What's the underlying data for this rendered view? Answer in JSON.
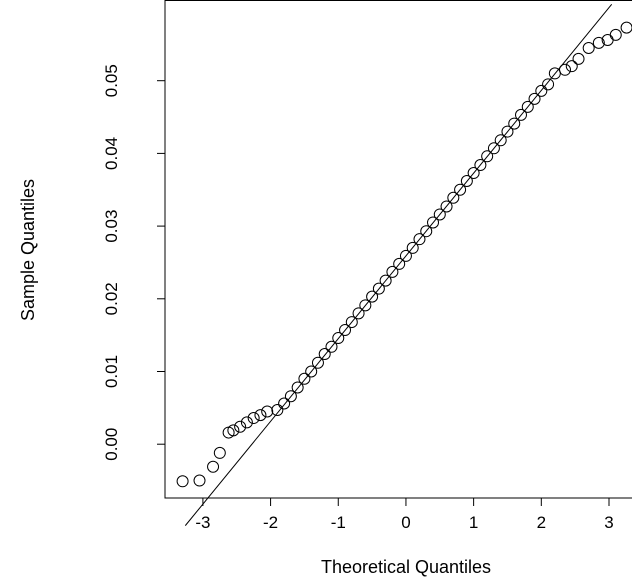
{
  "chart_data": {
    "type": "scatter",
    "x_label": "Theoretical Quantiles",
    "y_label": "Sample Quantiles",
    "xlim": [
      -3.56,
      3.34
    ],
    "ylim": [
      -0.0074,
      0.0611
    ],
    "xticks": [
      -3,
      -2,
      -1,
      0,
      1,
      2,
      3
    ],
    "yticks": [
      {
        "value": 0,
        "label": "0.00"
      },
      {
        "value": 0.01,
        "label": "0.01"
      },
      {
        "value": 0.02,
        "label": "0.02"
      },
      {
        "value": 0.03,
        "label": "0.03"
      },
      {
        "value": 0.04,
        "label": "0.04"
      },
      {
        "value": 0.05,
        "label": "0.05"
      }
    ],
    "color": "#000000",
    "x": [
      -3.3,
      -3.05,
      -2.85,
      -2.75,
      -2.62,
      -2.55,
      -2.45,
      -2.35,
      -2.25,
      -2.15,
      -2.05,
      -1.9,
      -1.8,
      -1.7,
      -1.6,
      -1.5,
      -1.4,
      -1.3,
      -1.2,
      -1.1,
      -1.0,
      -0.9,
      -0.8,
      -0.7,
      -0.6,
      -0.5,
      -0.4,
      -0.3,
      -0.2,
      -0.1,
      0,
      0.1,
      0.2,
      0.3,
      0.4,
      0.5,
      0.6,
      0.7,
      0.8,
      0.9,
      1.0,
      1.1,
      1.2,
      1.3,
      1.4,
      1.5,
      1.6,
      1.7,
      1.8,
      1.9,
      2.0,
      2.1,
      2.2,
      2.35,
      2.45,
      2.55,
      2.7,
      2.85,
      2.98,
      3.1,
      3.26
    ],
    "values": [
      -0.0051,
      -0.005,
      -0.0031,
      -0.0012,
      0.0016,
      0.0019,
      0.0024,
      0.003,
      0.0036,
      0.004,
      0.0045,
      0.0047,
      0.0056,
      0.0066,
      0.0078,
      0.009,
      0.01,
      0.0112,
      0.0124,
      0.0134,
      0.0146,
      0.0157,
      0.0168,
      0.018,
      0.0191,
      0.0203,
      0.0214,
      0.0225,
      0.0237,
      0.0248,
      0.0259,
      0.027,
      0.0282,
      0.0293,
      0.0305,
      0.0316,
      0.0327,
      0.0339,
      0.035,
      0.0362,
      0.0373,
      0.0384,
      0.0396,
      0.0407,
      0.0418,
      0.043,
      0.0441,
      0.0453,
      0.0464,
      0.0475,
      0.0486,
      0.0495,
      0.051,
      0.0515,
      0.052,
      0.053,
      0.0545,
      0.0552,
      0.0556,
      0.0563,
      0.0573
    ],
    "line": {
      "x": [
        -3.26,
        3.04
      ],
      "y": [
        -0.0112,
        0.0605
      ],
      "color": "#000000"
    }
  }
}
